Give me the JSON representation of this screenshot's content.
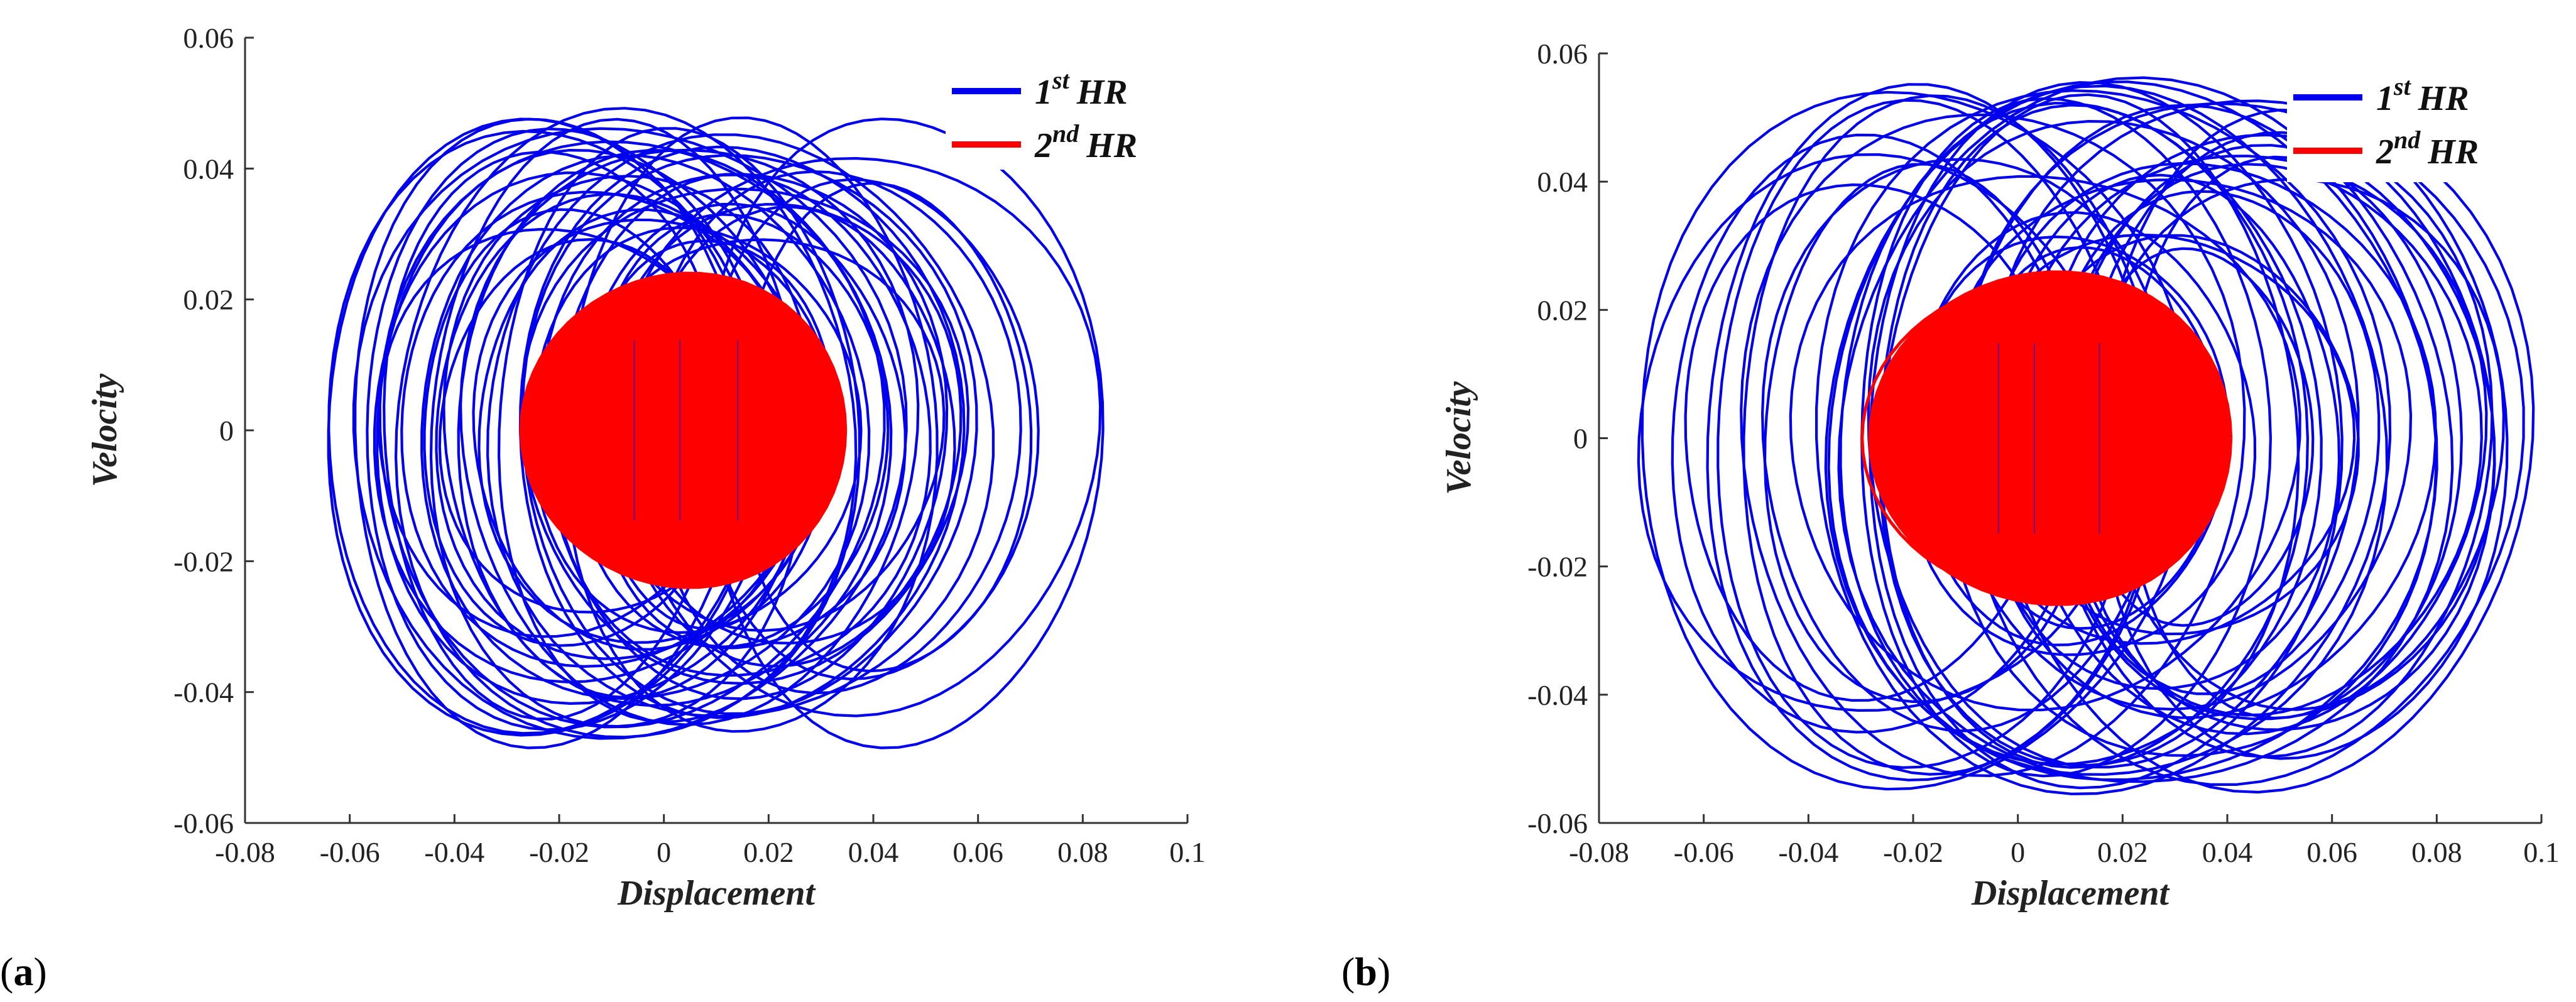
{
  "colors": {
    "first_hr": "#0000ee",
    "second_hr": "#ff0000",
    "axis": "#333333",
    "text": "#222222"
  },
  "chart_data": [
    {
      "panel": "(a)",
      "panel_letter": "a",
      "type": "line",
      "title": "",
      "xlabel": "Displacement",
      "ylabel": "Velocity",
      "xlim": [
        -0.08,
        0.1
      ],
      "ylim": [
        -0.06,
        0.06
      ],
      "xticks": [
        -0.08,
        -0.06,
        -0.04,
        -0.02,
        0,
        0.02,
        0.04,
        0.06,
        0.08,
        0.1
      ],
      "xtick_labels": [
        "-0.08",
        "-0.06",
        "-0.04",
        "-0.02",
        "0",
        "0.02",
        "0.04",
        "0.06",
        "0.08",
        "0.1"
      ],
      "yticks": [
        0.06,
        0.04,
        0.02,
        0,
        -0.02,
        -0.04,
        -0.06
      ],
      "ytick_labels": [
        "0.06",
        "0.04",
        "0.02",
        "0",
        "-0.02",
        "-0.04",
        "-0.06"
      ],
      "legend_position": "top-right",
      "series": [
        {
          "name": "1st HR",
          "legend_base": "1",
          "legend_sup": "st",
          "legend_rest": "HR",
          "color": "#0000ee",
          "description": "phase-portrait orbits",
          "x_range": [
            -0.065,
            0.083
          ],
          "v_range": [
            -0.049,
            0.049
          ],
          "amplitude_y_range": [
            0.026,
            0.049
          ],
          "center_x_range": [
            -0.025,
            0.045
          ]
        },
        {
          "name": "2nd HR",
          "legend_base": "2",
          "legend_sup": "nd",
          "legend_rest": "HR",
          "color": "#ff0000",
          "description": "phase-portrait orbits",
          "x_range": [
            -0.028,
            0.034
          ],
          "v_range": [
            -0.025,
            0.025
          ]
        }
      ]
    },
    {
      "panel": "(b)",
      "panel_letter": "b",
      "type": "line",
      "title": "",
      "xlabel": "Displacement",
      "ylabel": "Velocity",
      "xlim": [
        -0.08,
        0.1
      ],
      "ylim": [
        -0.06,
        0.06
      ],
      "xticks": [
        -0.08,
        -0.06,
        -0.04,
        -0.02,
        0,
        0.02,
        0.04,
        0.06,
        0.08,
        0.1
      ],
      "xtick_labels": [
        "-0.08",
        "-0.06",
        "-0.04",
        "-0.02",
        "0",
        "0.02",
        "0.04",
        "0.06",
        "0.08",
        "0.1"
      ],
      "yticks": [
        0.06,
        0.04,
        0.02,
        0,
        -0.02,
        -0.04,
        -0.06
      ],
      "ytick_labels": [
        "0.06",
        "0.04",
        "0.02",
        "0",
        "-0.02",
        "-0.04",
        "-0.06"
      ],
      "legend_position": "top-right",
      "series": [
        {
          "name": "1st HR",
          "legend_base": "1",
          "legend_sup": "st",
          "legend_rest": "HR",
          "color": "#0000ee",
          "description": "phase-portrait orbits",
          "x_range": [
            -0.073,
            0.098
          ],
          "v_range": [
            -0.055,
            0.055
          ],
          "amplitude_y_range": [
            0.028,
            0.055
          ],
          "center_x_range": [
            -0.03,
            0.055
          ]
        },
        {
          "name": "2nd HR",
          "legend_base": "2",
          "legend_sup": "nd",
          "legend_rest": "HR",
          "color": "#ff0000",
          "description": "phase-portrait orbits",
          "x_range": [
            -0.03,
            0.039
          ],
          "v_range": [
            -0.027,
            0.027
          ]
        }
      ]
    }
  ]
}
